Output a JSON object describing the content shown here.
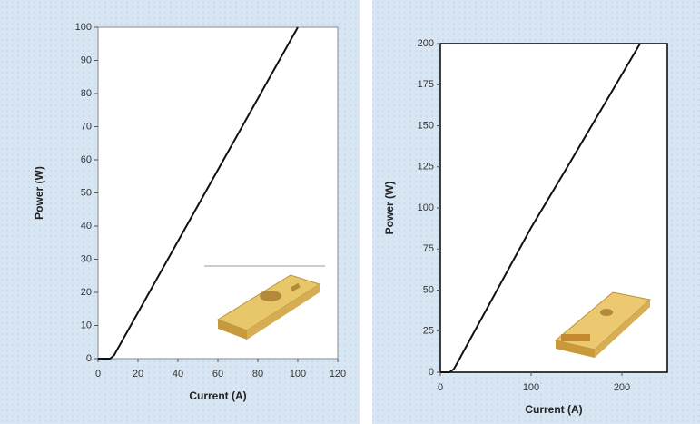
{
  "chart_data": [
    {
      "type": "line",
      "x_label": "Current (A)",
      "y_label": "Power (W)",
      "x": [
        0,
        6,
        8,
        100
      ],
      "series": [
        {
          "color": "#111111",
          "values": [
            0,
            0,
            1,
            100
          ]
        }
      ],
      "xlim": [
        0,
        120
      ],
      "ylim": [
        0,
        100
      ],
      "xticks": [
        0,
        20,
        40,
        60,
        80,
        100,
        120
      ],
      "yticks": [
        0,
        10,
        20,
        30,
        40,
        50,
        60,
        70,
        80,
        90,
        100
      ]
    },
    {
      "type": "line",
      "x_label": "Current (A)",
      "y_label": "Power (W)",
      "x": [
        0,
        10,
        15,
        20,
        100,
        140,
        220
      ],
      "series": [
        {
          "color": "#111111",
          "values": [
            0,
            0,
            2,
            7,
            88,
            125,
            200
          ]
        }
      ],
      "xlim": [
        0,
        250
      ],
      "ylim": [
        0,
        200
      ],
      "xticks": [
        0,
        100,
        200
      ],
      "yticks": [
        0,
        25,
        50,
        75,
        100,
        125,
        150,
        175,
        200
      ]
    }
  ]
}
